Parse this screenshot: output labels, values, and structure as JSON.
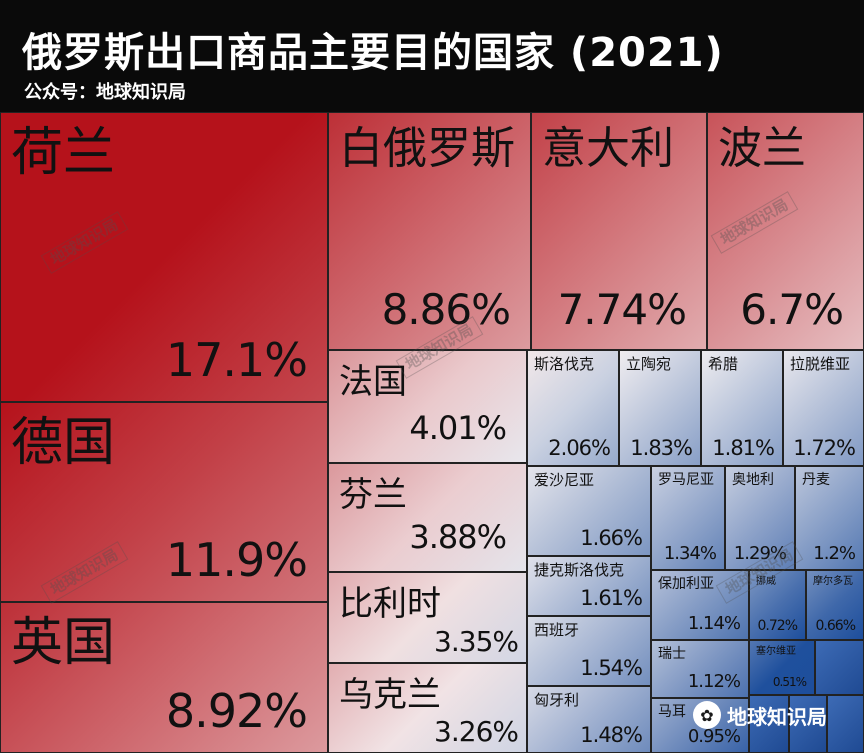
{
  "header": {
    "title": "俄罗斯出口商品主要目的国家 (2021)",
    "subtitle": "公众号：地球知识局"
  },
  "watermark": {
    "text": "地球知识局"
  },
  "badge": {
    "text": "地球知识局",
    "icon": "wechat-icon"
  },
  "colors": {
    "high": "#b5121b",
    "mid": "#f5f1f2",
    "low": "#1d4e9c",
    "border": "#222222"
  },
  "chart_data": {
    "type": "treemap",
    "title": "俄罗斯出口商品主要目的国家 (2021)",
    "unit": "%",
    "items": [
      {
        "name": "荷兰",
        "label": "17.1%",
        "value": 17.1
      },
      {
        "name": "德国",
        "label": "11.9%",
        "value": 11.9
      },
      {
        "name": "英国",
        "label": "8.92%",
        "value": 8.92
      },
      {
        "name": "白俄罗斯",
        "label": "8.86%",
        "value": 8.86
      },
      {
        "name": "意大利",
        "label": "7.74%",
        "value": 7.74
      },
      {
        "name": "波兰",
        "label": "6.7%",
        "value": 6.7
      },
      {
        "name": "法国",
        "label": "4.01%",
        "value": 4.01
      },
      {
        "name": "芬兰",
        "label": "3.88%",
        "value": 3.88
      },
      {
        "name": "比利时",
        "label": "3.35%",
        "value": 3.35
      },
      {
        "name": "乌克兰",
        "label": "3.26%",
        "value": 3.26
      },
      {
        "name": "斯洛伐克",
        "label": "2.06%",
        "value": 2.06
      },
      {
        "name": "立陶宛",
        "label": "1.83%",
        "value": 1.83
      },
      {
        "name": "希腊",
        "label": "1.81%",
        "value": 1.81
      },
      {
        "name": "拉脱维亚",
        "label": "1.72%",
        "value": 1.72
      },
      {
        "name": "爱沙尼亚",
        "label": "1.66%",
        "value": 1.66
      },
      {
        "name": "捷克斯洛伐克",
        "label": "1.61%",
        "value": 1.61
      },
      {
        "name": "西班牙",
        "label": "1.54%",
        "value": 1.54
      },
      {
        "name": "匈牙利",
        "label": "1.48%",
        "value": 1.48
      },
      {
        "name": "罗马尼亚",
        "label": "1.34%",
        "value": 1.34
      },
      {
        "name": "奥地利",
        "label": "1.29%",
        "value": 1.29
      },
      {
        "name": "丹麦",
        "label": "1.2%",
        "value": 1.2
      },
      {
        "name": "保加利亚",
        "label": "1.14%",
        "value": 1.14
      },
      {
        "name": "瑞士",
        "label": "1.12%",
        "value": 1.12
      },
      {
        "name": "马耳",
        "label": "0.95%",
        "value": 0.95
      },
      {
        "name": "挪威",
        "label": "0.72%",
        "value": 0.72
      },
      {
        "name": "摩尔多瓦",
        "label": "0.66%",
        "value": 0.66
      },
      {
        "name": "塞尔维亚",
        "label": "0.51%",
        "value": 0.51
      },
      {
        "name": "",
        "label": "",
        "value": null
      },
      {
        "name": "",
        "label": "",
        "value": null
      },
      {
        "name": "",
        "label": "",
        "value": null
      },
      {
        "name": "",
        "label": "",
        "value": null
      }
    ]
  }
}
